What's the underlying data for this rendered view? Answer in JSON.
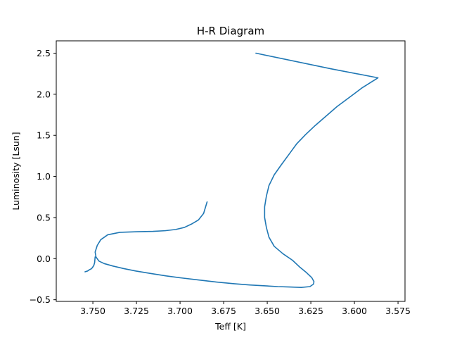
{
  "chart_data": {
    "type": "line",
    "title": "H-R Diagram",
    "xlabel": "Teff [K]",
    "ylabel": "Luminosity [Lsun]",
    "xlim": [
      3.771,
      3.571
    ],
    "ylim": [
      -0.52,
      2.65
    ],
    "x_inverted": true,
    "grid": false,
    "x_ticks": [
      3.75,
      3.725,
      3.7,
      3.675,
      3.65,
      3.625,
      3.6,
      3.575
    ],
    "x_tick_labels": [
      "3.750",
      "3.725",
      "3.700",
      "3.675",
      "3.650",
      "3.625",
      "3.600",
      "3.575"
    ],
    "y_ticks": [
      -0.5,
      0.0,
      0.5,
      1.0,
      1.5,
      2.0,
      2.5
    ],
    "y_tick_labels": [
      "−0.5",
      "0.0",
      "0.5",
      "1.0",
      "1.5",
      "2.0",
      "2.5"
    ],
    "series": [
      {
        "color": "#1f77b4",
        "x": [
          3.6845,
          3.6865,
          3.6895,
          3.6935,
          3.6975,
          3.7025,
          3.7085,
          3.7155,
          3.7245,
          3.7345,
          3.7415,
          3.7455,
          3.7475,
          3.7487,
          3.7482,
          3.7465,
          3.7435,
          3.7385,
          3.7325,
          3.7255,
          3.717,
          3.708,
          3.699,
          3.689,
          3.679,
          3.669,
          3.66,
          3.652,
          3.644,
          3.637,
          3.6305,
          3.6255,
          3.6235,
          3.6232,
          3.6245,
          3.6275,
          3.6315,
          3.6355,
          3.641,
          3.646,
          3.649,
          3.6505,
          3.6515,
          3.6515,
          3.6505,
          3.649,
          3.646,
          3.642,
          3.6375,
          3.633,
          3.628,
          3.6225,
          3.6165,
          3.61,
          3.603,
          3.5955,
          3.5865,
          3.6135,
          3.6565
        ],
        "y": [
          0.69,
          0.55,
          0.47,
          0.42,
          0.38,
          0.355,
          0.34,
          0.332,
          0.328,
          0.32,
          0.29,
          0.23,
          0.16,
          0.08,
          0.02,
          -0.03,
          -0.06,
          -0.09,
          -0.12,
          -0.15,
          -0.18,
          -0.21,
          -0.235,
          -0.26,
          -0.285,
          -0.305,
          -0.32,
          -0.33,
          -0.34,
          -0.345,
          -0.35,
          -0.34,
          -0.31,
          -0.28,
          -0.23,
          -0.17,
          -0.1,
          -0.02,
          0.06,
          0.15,
          0.26,
          0.38,
          0.5,
          0.63,
          0.76,
          0.89,
          1.02,
          1.14,
          1.27,
          1.4,
          1.51,
          1.62,
          1.73,
          1.85,
          1.96,
          2.08,
          2.2,
          2.31,
          2.5
        ]
      }
    ],
    "inner_loop": {
      "color": "#1f77b4",
      "x": [
        3.7487,
        3.749,
        3.7495,
        3.75,
        3.7505,
        3.751,
        3.752,
        3.753,
        3.7545
      ],
      "y": [
        0.02,
        -0.05,
        -0.085,
        -0.1,
        -0.115,
        -0.125,
        -0.135,
        -0.15,
        -0.16
      ]
    }
  }
}
